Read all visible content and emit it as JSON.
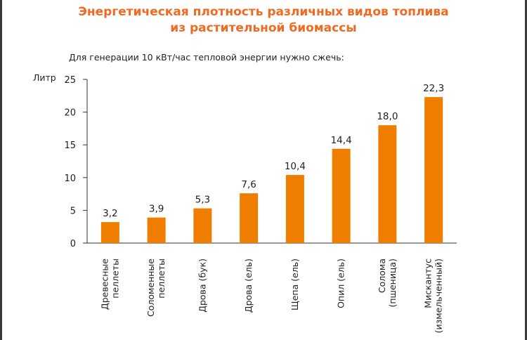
{
  "chart_data": {
    "type": "bar",
    "title_line1": "Энергетическая плотность различных видов топлива",
    "title_line2": "из растительной биомассы",
    "subtitle": "Для генерации 10 кВт/час тепловой энергии нужно сжечь:",
    "ylabel": "Литр",
    "ylim": [
      0,
      25
    ],
    "yticks": [
      0,
      5,
      10,
      15,
      20,
      25
    ],
    "grid": false,
    "bar_color": "#ef7d00",
    "categories": [
      [
        "Древесные",
        "пеллеты"
      ],
      [
        "Соломенные",
        "пеллеты"
      ],
      [
        "Дрова (бук)"
      ],
      [
        "Дрова (ель)"
      ],
      [
        "Щепа (ель)"
      ],
      [
        "Опил (ель)"
      ],
      [
        "Солома",
        "(пшеница)"
      ],
      [
        "Мискантус",
        "(измельченный)"
      ]
    ],
    "values": [
      3.2,
      3.9,
      5.3,
      7.6,
      10.4,
      14.4,
      18.0,
      22.3
    ],
    "value_labels": [
      "3,2",
      "3,9",
      "5,3",
      "7,6",
      "10,4",
      "14,4",
      "18,0",
      "22,3"
    ]
  }
}
